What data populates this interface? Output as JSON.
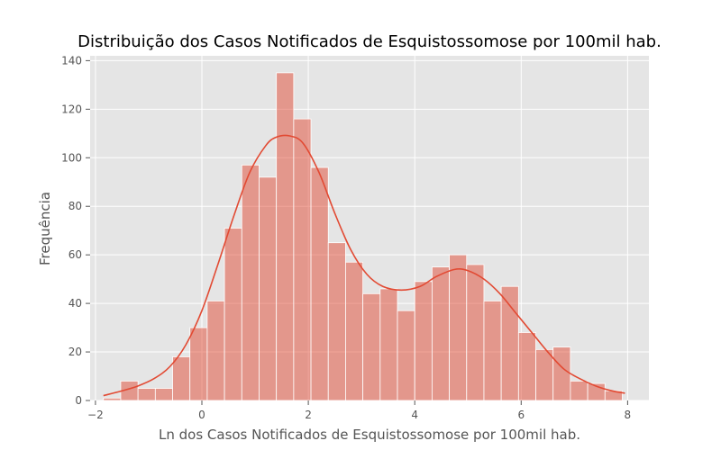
{
  "chart_data": {
    "type": "bar",
    "subtype": "histogram-with-kde",
    "title": "Distribuição dos Casos Notificados de Esquistossomose por 100mil hab.",
    "xlabel": "Ln dos Casos Notificados de Esquistossomose por 100mil hab.",
    "ylabel": "Frequência",
    "xlim": [
      -2.1,
      8.4
    ],
    "ylim": [
      0,
      142
    ],
    "x_ticks": [
      -2,
      0,
      2,
      4,
      6,
      8
    ],
    "y_ticks": [
      0,
      20,
      40,
      60,
      80,
      100,
      120,
      140
    ],
    "grid": true,
    "bin_start": -1.85,
    "bin_width": 0.325,
    "values": [
      1,
      8,
      5,
      5,
      18,
      30,
      41,
      71,
      97,
      92,
      135,
      116,
      96,
      65,
      57,
      44,
      46,
      37,
      49,
      55,
      60,
      56,
      41,
      47,
      28,
      21,
      22,
      8,
      7,
      4
    ],
    "kde_curve": {
      "x": [
        -1.85,
        -1.5,
        -1.2,
        -0.9,
        -0.6,
        -0.3,
        0.0,
        0.3,
        0.6,
        0.9,
        1.2,
        1.4,
        1.65,
        1.9,
        2.2,
        2.5,
        2.8,
        3.1,
        3.4,
        3.75,
        4.1,
        4.4,
        4.75,
        5.0,
        5.3,
        5.6,
        5.9,
        6.2,
        6.5,
        6.8,
        7.1,
        7.4,
        7.7,
        7.95
      ],
      "y": [
        2,
        4,
        6,
        9,
        14,
        23,
        37,
        56,
        76,
        94,
        105,
        108.5,
        109,
        106,
        94,
        77,
        62,
        52,
        47,
        45.5,
        47,
        51,
        54,
        53.5,
        50,
        44,
        36,
        28,
        20,
        13,
        9,
        6,
        4,
        3
      ]
    },
    "colors": {
      "bar": "#E24A33",
      "kde": "#E24A33",
      "plot_background": "#E5E5E5"
    }
  }
}
